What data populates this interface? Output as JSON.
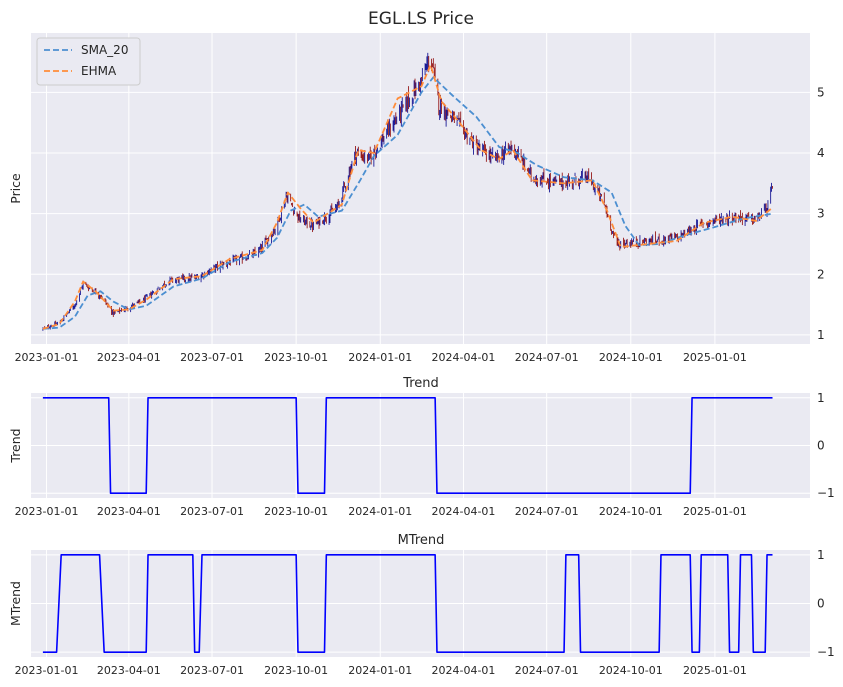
{
  "chart_data": [
    {
      "type": "line",
      "title": "EGL.LS Price",
      "ylabel": "Price",
      "ylim": [
        0.85,
        5.98
      ],
      "yticks": [
        1,
        2,
        3,
        4,
        5
      ],
      "xlim": [
        "2022-12-15",
        "2025-04-15"
      ],
      "xticks": [
        "2023-01-01",
        "2023-04-01",
        "2023-07-01",
        "2023-10-01",
        "2024-01-01",
        "2024-04-01",
        "2024-07-01",
        "2024-10-01",
        "2025-01-01"
      ],
      "grid": true,
      "legend": "top-left",
      "candles": {
        "up_color": "#00008b",
        "down_color": "#8b0000",
        "close_anchors": [
          [
            "2022-12-28",
            1.1
          ],
          [
            "2023-01-15",
            1.2
          ],
          [
            "2023-02-01",
            1.5
          ],
          [
            "2023-02-10",
            1.85
          ],
          [
            "2023-03-01",
            1.65
          ],
          [
            "2023-03-15",
            1.35
          ],
          [
            "2023-04-15",
            1.55
          ],
          [
            "2023-05-15",
            1.9
          ],
          [
            "2023-06-15",
            1.95
          ],
          [
            "2023-07-10",
            2.15
          ],
          [
            "2023-08-20",
            2.35
          ],
          [
            "2023-09-10",
            2.8
          ],
          [
            "2023-09-20",
            3.3
          ],
          [
            "2023-10-05",
            2.9
          ],
          [
            "2023-10-20",
            2.8
          ],
          [
            "2023-11-15",
            3.1
          ],
          [
            "2023-12-05",
            4.0
          ],
          [
            "2023-12-20",
            3.9
          ],
          [
            "2024-01-20",
            4.6
          ],
          [
            "2024-02-15",
            5.2
          ],
          [
            "2024-02-25",
            5.6
          ],
          [
            "2024-03-05",
            4.8
          ],
          [
            "2024-03-25",
            4.5
          ],
          [
            "2024-04-15",
            4.1
          ],
          [
            "2024-05-05",
            3.9
          ],
          [
            "2024-05-25",
            4.1
          ],
          [
            "2024-06-15",
            3.6
          ],
          [
            "2024-07-15",
            3.5
          ],
          [
            "2024-08-15",
            3.6
          ],
          [
            "2024-09-01",
            3.2
          ],
          [
            "2024-09-15",
            2.5
          ],
          [
            "2024-10-20",
            2.55
          ],
          [
            "2024-11-20",
            2.6
          ],
          [
            "2024-12-20",
            2.85
          ],
          [
            "2025-01-20",
            2.95
          ],
          [
            "2025-02-15",
            2.9
          ],
          [
            "2025-03-01",
            3.15
          ],
          [
            "2025-03-05",
            3.45
          ]
        ]
      },
      "series": [
        {
          "name": "SMA_20",
          "color": "#4c8fd1",
          "dash": "dashed",
          "points": [
            [
              "2022-12-28",
              1.1
            ],
            [
              "2023-01-15",
              1.12
            ],
            [
              "2023-02-01",
              1.3
            ],
            [
              "2023-02-15",
              1.65
            ],
            [
              "2023-03-01",
              1.72
            ],
            [
              "2023-03-15",
              1.55
            ],
            [
              "2023-04-01",
              1.42
            ],
            [
              "2023-04-20",
              1.48
            ],
            [
              "2023-05-20",
              1.8
            ],
            [
              "2023-06-20",
              1.93
            ],
            [
              "2023-07-20",
              2.2
            ],
            [
              "2023-08-25",
              2.35
            ],
            [
              "2023-09-10",
              2.6
            ],
            [
              "2023-09-25",
              3.05
            ],
            [
              "2023-10-10",
              3.15
            ],
            [
              "2023-10-25",
              2.95
            ],
            [
              "2023-11-20",
              3.05
            ],
            [
              "2023-12-10",
              3.55
            ],
            [
              "2023-12-25",
              3.95
            ],
            [
              "2024-01-20",
              4.3
            ],
            [
              "2024-02-15",
              5.0
            ],
            [
              "2024-02-28",
              5.25
            ],
            [
              "2024-03-20",
              4.95
            ],
            [
              "2024-04-15",
              4.6
            ],
            [
              "2024-05-10",
              4.1
            ],
            [
              "2024-05-30",
              4.0
            ],
            [
              "2024-06-20",
              3.8
            ],
            [
              "2024-07-20",
              3.6
            ],
            [
              "2024-08-20",
              3.55
            ],
            [
              "2024-09-10",
              3.35
            ],
            [
              "2024-09-25",
              2.8
            ],
            [
              "2024-10-10",
              2.48
            ],
            [
              "2024-11-01",
              2.5
            ],
            [
              "2024-12-01",
              2.65
            ],
            [
              "2025-01-01",
              2.78
            ],
            [
              "2025-02-01",
              2.92
            ],
            [
              "2025-03-05",
              3.0
            ]
          ]
        },
        {
          "name": "EHMA",
          "color": "#ff8c3a",
          "dash": "dashed",
          "points": [
            [
              "2022-12-28",
              1.1
            ],
            [
              "2023-01-15",
              1.18
            ],
            [
              "2023-02-01",
              1.55
            ],
            [
              "2023-02-10",
              1.88
            ],
            [
              "2023-02-25",
              1.7
            ],
            [
              "2023-03-15",
              1.4
            ],
            [
              "2023-04-01",
              1.42
            ],
            [
              "2023-04-20",
              1.58
            ],
            [
              "2023-05-20",
              1.92
            ],
            [
              "2023-06-20",
              1.97
            ],
            [
              "2023-07-20",
              2.25
            ],
            [
              "2023-08-25",
              2.4
            ],
            [
              "2023-09-10",
              2.85
            ],
            [
              "2023-09-22",
              3.35
            ],
            [
              "2023-10-05",
              3.1
            ],
            [
              "2023-10-20",
              2.85
            ],
            [
              "2023-11-20",
              3.15
            ],
            [
              "2023-12-08",
              4.05
            ],
            [
              "2023-12-25",
              4.0
            ],
            [
              "2024-01-20",
              4.9
            ],
            [
              "2024-02-15",
              5.1
            ],
            [
              "2024-02-25",
              5.45
            ],
            [
              "2024-03-08",
              4.85
            ],
            [
              "2024-03-25",
              4.55
            ],
            [
              "2024-04-20",
              4.05
            ],
            [
              "2024-05-10",
              3.9
            ],
            [
              "2024-05-25",
              4.05
            ],
            [
              "2024-06-15",
              3.55
            ],
            [
              "2024-07-20",
              3.5
            ],
            [
              "2024-08-20",
              3.55
            ],
            [
              "2024-09-05",
              3.05
            ],
            [
              "2024-09-20",
              2.45
            ],
            [
              "2024-10-20",
              2.5
            ],
            [
              "2024-11-20",
              2.55
            ],
            [
              "2024-12-20",
              2.85
            ],
            [
              "2025-01-20",
              2.95
            ],
            [
              "2025-02-15",
              2.88
            ],
            [
              "2025-03-05",
              3.1
            ]
          ]
        }
      ]
    },
    {
      "type": "line",
      "title": "Trend",
      "ylabel": "Trend",
      "ylim": [
        -1.1,
        1.1
      ],
      "yticks": [
        -1,
        0,
        1
      ],
      "xlim": [
        "2022-12-15",
        "2025-04-15"
      ],
      "xticks": [
        "2023-01-01",
        "2023-04-01",
        "2023-07-01",
        "2023-10-01",
        "2024-01-01",
        "2024-04-01",
        "2024-07-01",
        "2024-10-01",
        "2025-01-01"
      ],
      "grid": true,
      "series": [
        {
          "name": "",
          "color": "#0000ff",
          "segments": [
            [
              "2022-12-28",
              1
            ],
            [
              "2023-03-10",
              1
            ],
            [
              "2023-03-12",
              -1
            ],
            [
              "2023-04-20",
              -1
            ],
            [
              "2023-04-22",
              1
            ],
            [
              "2023-10-01",
              1
            ],
            [
              "2023-10-03",
              -1
            ],
            [
              "2023-11-01",
              -1
            ],
            [
              "2023-11-03",
              1
            ],
            [
              "2024-03-01",
              1
            ],
            [
              "2024-03-03",
              -1
            ],
            [
              "2024-12-05",
              -1
            ],
            [
              "2024-12-07",
              1
            ],
            [
              "2025-03-05",
              1
            ]
          ]
        }
      ]
    },
    {
      "type": "line",
      "title": "MTrend",
      "ylabel": "MTrend",
      "ylim": [
        -1.1,
        1.1
      ],
      "yticks": [
        -1,
        0,
        1
      ],
      "xlim": [
        "2022-12-15",
        "2025-04-15"
      ],
      "xticks": [
        "2023-01-01",
        "2023-04-01",
        "2023-07-01",
        "2023-10-01",
        "2024-01-01",
        "2024-04-01",
        "2024-07-01",
        "2024-10-01",
        "2025-01-01"
      ],
      "grid": true,
      "series": [
        {
          "name": "",
          "color": "#0000ff",
          "segments": [
            [
              "2022-12-28",
              -1
            ],
            [
              "2023-01-12",
              -1
            ],
            [
              "2023-01-17",
              1
            ],
            [
              "2023-02-28",
              1
            ],
            [
              "2023-03-05",
              -1
            ],
            [
              "2023-04-20",
              -1
            ],
            [
              "2023-04-22",
              1
            ],
            [
              "2023-06-10",
              1
            ],
            [
              "2023-06-12",
              -1
            ],
            [
              "2023-06-17",
              -1
            ],
            [
              "2023-06-20",
              1
            ],
            [
              "2023-10-01",
              1
            ],
            [
              "2023-10-03",
              -1
            ],
            [
              "2023-11-01",
              -1
            ],
            [
              "2023-11-03",
              1
            ],
            [
              "2024-03-01",
              1
            ],
            [
              "2024-03-03",
              -1
            ],
            [
              "2024-07-20",
              -1
            ],
            [
              "2024-07-22",
              1
            ],
            [
              "2024-08-05",
              1
            ],
            [
              "2024-08-07",
              -1
            ],
            [
              "2024-11-01",
              -1
            ],
            [
              "2024-11-03",
              1
            ],
            [
              "2024-12-05",
              1
            ],
            [
              "2024-12-07",
              -1
            ],
            [
              "2024-12-15",
              -1
            ],
            [
              "2024-12-17",
              1
            ],
            [
              "2025-01-15",
              1
            ],
            [
              "2025-01-17",
              -1
            ],
            [
              "2025-01-27",
              -1
            ],
            [
              "2025-01-29",
              1
            ],
            [
              "2025-02-10",
              1
            ],
            [
              "2025-02-12",
              -1
            ],
            [
              "2025-02-25",
              -1
            ],
            [
              "2025-02-27",
              1
            ],
            [
              "2025-03-05",
              1
            ]
          ]
        }
      ]
    }
  ]
}
